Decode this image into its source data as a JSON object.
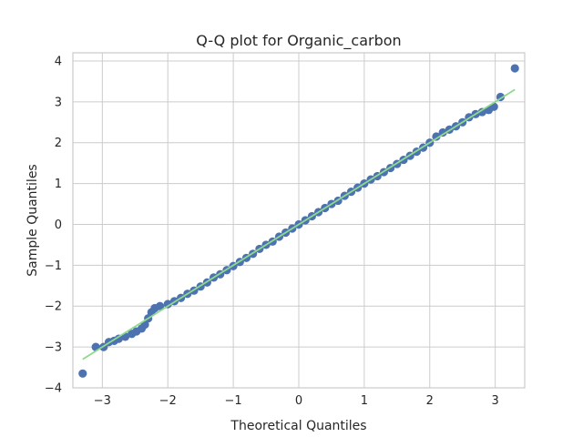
{
  "chart_data": {
    "type": "scatter",
    "title": "Q-Q plot for Organic_carbon",
    "xlabel": "Theoretical Quantiles",
    "ylabel": "Sample Quantiles",
    "xlim": [
      -3.45,
      3.45
    ],
    "ylim": [
      -4,
      4.2
    ],
    "xticks": [
      -3,
      -2,
      -1,
      0,
      1,
      2,
      3
    ],
    "xtick_labels": [
      "−3",
      "−2",
      "−1",
      "0",
      "1",
      "2",
      "3"
    ],
    "yticks": [
      -4,
      -3,
      -2,
      -1,
      0,
      1,
      2,
      3,
      4
    ],
    "ytick_labels": [
      "−4",
      "−3",
      "−2",
      "−1",
      "0",
      "1",
      "2",
      "3",
      "4"
    ],
    "grid": true,
    "colors": {
      "points": "#4c72b0",
      "line": "#8fd98f"
    },
    "reference_line": {
      "x": [
        -3.3,
        3.3
      ],
      "y": [
        -3.3,
        3.3
      ]
    },
    "points": [
      [
        -3.3,
        -3.65
      ],
      [
        -3.1,
        -3.0
      ],
      [
        -2.98,
        -3.0
      ],
      [
        -2.9,
        -2.88
      ],
      [
        -2.82,
        -2.85
      ],
      [
        -2.75,
        -2.8
      ],
      [
        -2.65,
        -2.75
      ],
      [
        -2.55,
        -2.68
      ],
      [
        -2.48,
        -2.62
      ],
      [
        -2.4,
        -2.55
      ],
      [
        -2.35,
        -2.45
      ],
      [
        -2.3,
        -2.3
      ],
      [
        -2.25,
        -2.15
      ],
      [
        -2.2,
        -2.05
      ],
      [
        -2.12,
        -2.0
      ],
      [
        -2.0,
        -1.95
      ],
      [
        -1.9,
        -1.88
      ],
      [
        -1.8,
        -1.8
      ],
      [
        -1.7,
        -1.7
      ],
      [
        -1.6,
        -1.62
      ],
      [
        -1.5,
        -1.52
      ],
      [
        -1.4,
        -1.42
      ],
      [
        -1.3,
        -1.3
      ],
      [
        -1.2,
        -1.22
      ],
      [
        -1.1,
        -1.12
      ],
      [
        -1.0,
        -1.02
      ],
      [
        -0.9,
        -0.92
      ],
      [
        -0.8,
        -0.82
      ],
      [
        -0.7,
        -0.72
      ],
      [
        -0.6,
        -0.6
      ],
      [
        -0.5,
        -0.5
      ],
      [
        -0.4,
        -0.42
      ],
      [
        -0.3,
        -0.3
      ],
      [
        -0.2,
        -0.2
      ],
      [
        -0.1,
        -0.1
      ],
      [
        0.0,
        0.0
      ],
      [
        0.1,
        0.1
      ],
      [
        0.2,
        0.2
      ],
      [
        0.3,
        0.3
      ],
      [
        0.4,
        0.4
      ],
      [
        0.5,
        0.5
      ],
      [
        0.6,
        0.58
      ],
      [
        0.7,
        0.7
      ],
      [
        0.8,
        0.8
      ],
      [
        0.9,
        0.9
      ],
      [
        1.0,
        1.0
      ],
      [
        1.1,
        1.1
      ],
      [
        1.2,
        1.18
      ],
      [
        1.3,
        1.28
      ],
      [
        1.4,
        1.38
      ],
      [
        1.5,
        1.48
      ],
      [
        1.6,
        1.58
      ],
      [
        1.7,
        1.68
      ],
      [
        1.8,
        1.78
      ],
      [
        1.9,
        1.88
      ],
      [
        2.0,
        2.0
      ],
      [
        2.1,
        2.15
      ],
      [
        2.2,
        2.25
      ],
      [
        2.3,
        2.32
      ],
      [
        2.4,
        2.4
      ],
      [
        2.5,
        2.5
      ],
      [
        2.6,
        2.62
      ],
      [
        2.7,
        2.7
      ],
      [
        2.8,
        2.75
      ],
      [
        2.9,
        2.8
      ],
      [
        2.98,
        2.88
      ],
      [
        3.08,
        3.12
      ],
      [
        3.3,
        3.82
      ]
    ]
  }
}
